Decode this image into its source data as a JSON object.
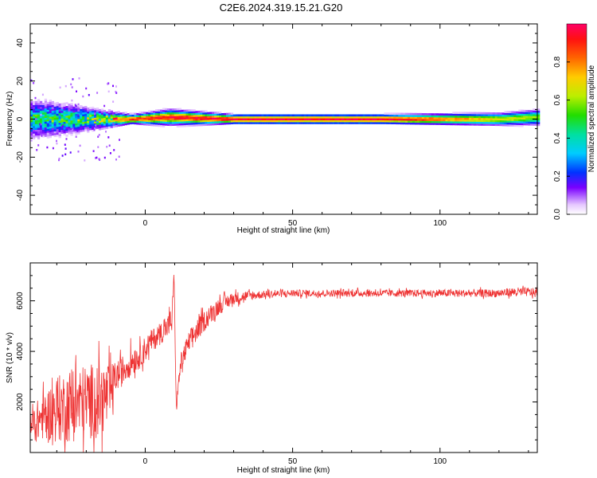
{
  "figure": {
    "title": "C2E6.2024.319.15.21.G20"
  },
  "chart_data": [
    {
      "type": "heatmap",
      "xlabel": "Height of straight line (km)",
      "ylabel": "Frequency (Hz)",
      "xlim": [
        -39,
        133
      ],
      "ylim": [
        -50,
        50
      ],
      "xticks": [
        "0",
        "50",
        "100"
      ],
      "yticks": [
        "-40",
        "-20",
        "0",
        "20",
        "40"
      ],
      "colorbar": {
        "label": "Normalized spectral amplitude",
        "range": [
          0.0,
          1.0
        ],
        "ticks": [
          "0.0",
          "0.2",
          "0.4",
          "0.6",
          "0.8"
        ]
      },
      "description_of_values": "Energy concentrated near 0 Hz across all heights; broad scatter between -39 and -10 km, narrow peak (amplitude ~1.0) from about -10 km to 125 km",
      "band": [
        {
          "x": -35,
          "center": 0,
          "halfwidth": 12,
          "amp": 0.45
        },
        {
          "x": -25,
          "center": 0,
          "halfwidth": 9,
          "amp": 0.5
        },
        {
          "x": -15,
          "center": 0,
          "halfwidth": 6,
          "amp": 0.6
        },
        {
          "x": -5,
          "center": 0,
          "halfwidth": 3,
          "amp": 0.9
        },
        {
          "x": 8,
          "center": 1,
          "halfwidth": 5,
          "amp": 0.95
        },
        {
          "x": 30,
          "center": 0,
          "halfwidth": 3,
          "amp": 1.0
        },
        {
          "x": 80,
          "center": 0,
          "halfwidth": 3,
          "amp": 1.0
        },
        {
          "x": 120,
          "center": 0,
          "halfwidth": 4,
          "amp": 0.7
        },
        {
          "x": 133,
          "center": 1,
          "halfwidth": 5,
          "amp": 0.6
        }
      ]
    },
    {
      "type": "line",
      "xlabel": "Height of straight line (km)",
      "ylabel": "SNR (10 * v/v)",
      "xlim": [
        -39,
        133
      ],
      "ylim": [
        0,
        7500
      ],
      "xticks": [
        "0",
        "50",
        "100"
      ],
      "yticks": [
        "2000",
        "4000",
        "6000"
      ],
      "series": [
        {
          "color": "#ee3333",
          "x": [
            -39,
            -35,
            -30,
            -25,
            -20,
            -15,
            -12,
            -10,
            -8,
            -5,
            -2,
            0,
            2,
            5,
            7,
            9,
            9.8,
            10.5,
            12,
            15,
            18,
            20,
            25,
            30,
            35,
            40,
            50,
            60,
            70,
            80,
            90,
            100,
            110,
            120,
            125,
            130,
            133
          ],
          "values": [
            1000,
            1400,
            1700,
            1900,
            2000,
            2100,
            2300,
            3000,
            3200,
            3600,
            3800,
            4100,
            4400,
            4700,
            4900,
            5200,
            7000,
            1800,
            3500,
            4400,
            4900,
            5200,
            5800,
            6100,
            6200,
            6250,
            6300,
            6300,
            6300,
            6300,
            6300,
            6300,
            6300,
            6300,
            6350,
            6350,
            6300
          ],
          "noise": [
            700,
            900,
            1300,
            1500,
            1500,
            1500,
            1200,
            600,
            600,
            600,
            500,
            500,
            450,
            450,
            400,
            600,
            200,
            200,
            400,
            450,
            450,
            400,
            350,
            250,
            200,
            150,
            140,
            140,
            140,
            140,
            140,
            150,
            150,
            160,
            180,
            180,
            180
          ]
        }
      ]
    }
  ]
}
